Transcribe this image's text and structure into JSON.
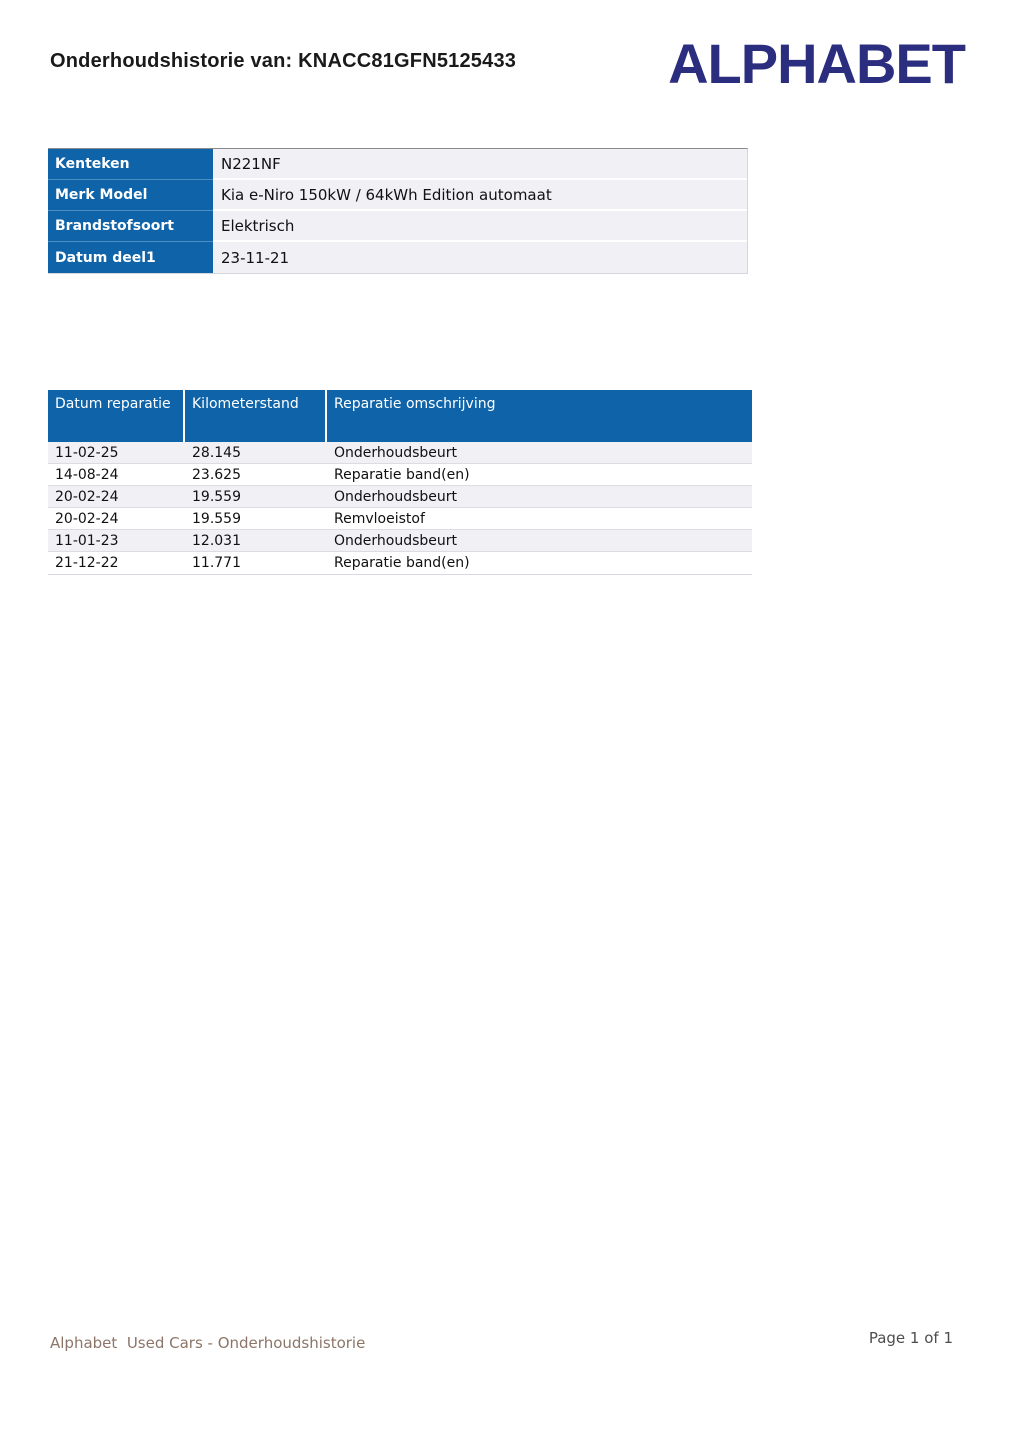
{
  "page": {
    "title": "Onderhoudshistorie van: KNACC81GFN5125433",
    "logo_text": "ALPHABET",
    "footer_left": "Alphabet  Used Cars - Onderhoudshistorie",
    "footer_right": "Page 1 of 1"
  },
  "colors": {
    "table_header_blue": "#0e63a9",
    "logo_navy": "#2b2d7f",
    "row_alternate": "#f0f0f5",
    "footer_left_text": "#8c7568"
  },
  "vehicle_info": {
    "rows": [
      {
        "label": "Kenteken",
        "value": "N221NF"
      },
      {
        "label": "Merk Model",
        "value": "Kia e-Niro 150kW / 64kWh Edition automaat"
      },
      {
        "label": "Brandstofsoort",
        "value": "Elektrisch"
      },
      {
        "label": "Datum deel1",
        "value": "23-11-21"
      }
    ]
  },
  "repairs": {
    "headers": [
      "Datum reparatie",
      "Kilometerstand",
      "Reparatie omschrijving"
    ],
    "rows": [
      {
        "datum": "11-02-25",
        "km": "28.145",
        "omschrijving": "Onderhoudsbeurt"
      },
      {
        "datum": "14-08-24",
        "km": "23.625",
        "omschrijving": "Reparatie band(en)"
      },
      {
        "datum": "20-02-24",
        "km": "19.559",
        "omschrijving": "Onderhoudsbeurt"
      },
      {
        "datum": "20-02-24",
        "km": "19.559",
        "omschrijving": "Remvloeistof"
      },
      {
        "datum": "11-01-23",
        "km": "12.031",
        "omschrijving": "Onderhoudsbeurt"
      },
      {
        "datum": "21-12-22",
        "km": "11.771",
        "omschrijving": "Reparatie band(en)"
      }
    ]
  }
}
